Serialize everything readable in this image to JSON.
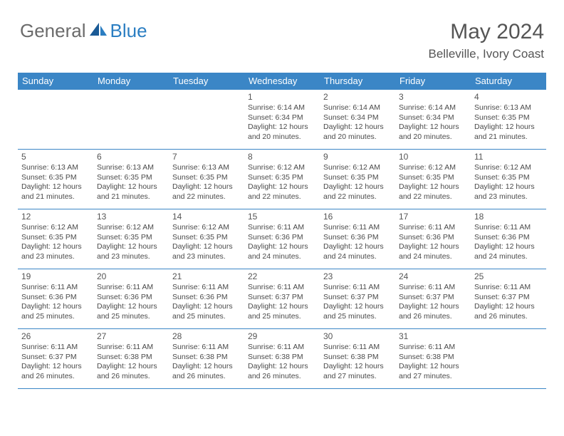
{
  "brand": {
    "word1": "General",
    "word2": "Blue"
  },
  "title": "May 2024",
  "location": "Belleville, Ivory Coast",
  "colors": {
    "header_bg": "#3b86c6",
    "header_text": "#ffffff",
    "border": "#3b86c6",
    "body_text": "#4a4a4a",
    "title_text": "#555555",
    "brand_gray": "#6b6b6b",
    "brand_blue": "#2b7ec2"
  },
  "day_headers": [
    "Sunday",
    "Monday",
    "Tuesday",
    "Wednesday",
    "Thursday",
    "Friday",
    "Saturday"
  ],
  "weeks": [
    [
      {
        "day": "",
        "sunrise": "",
        "sunset": "",
        "daylight1": "",
        "daylight2": ""
      },
      {
        "day": "",
        "sunrise": "",
        "sunset": "",
        "daylight1": "",
        "daylight2": ""
      },
      {
        "day": "",
        "sunrise": "",
        "sunset": "",
        "daylight1": "",
        "daylight2": ""
      },
      {
        "day": "1",
        "sunrise": "Sunrise: 6:14 AM",
        "sunset": "Sunset: 6:34 PM",
        "daylight1": "Daylight: 12 hours",
        "daylight2": "and 20 minutes."
      },
      {
        "day": "2",
        "sunrise": "Sunrise: 6:14 AM",
        "sunset": "Sunset: 6:34 PM",
        "daylight1": "Daylight: 12 hours",
        "daylight2": "and 20 minutes."
      },
      {
        "day": "3",
        "sunrise": "Sunrise: 6:14 AM",
        "sunset": "Sunset: 6:34 PM",
        "daylight1": "Daylight: 12 hours",
        "daylight2": "and 20 minutes."
      },
      {
        "day": "4",
        "sunrise": "Sunrise: 6:13 AM",
        "sunset": "Sunset: 6:35 PM",
        "daylight1": "Daylight: 12 hours",
        "daylight2": "and 21 minutes."
      }
    ],
    [
      {
        "day": "5",
        "sunrise": "Sunrise: 6:13 AM",
        "sunset": "Sunset: 6:35 PM",
        "daylight1": "Daylight: 12 hours",
        "daylight2": "and 21 minutes."
      },
      {
        "day": "6",
        "sunrise": "Sunrise: 6:13 AM",
        "sunset": "Sunset: 6:35 PM",
        "daylight1": "Daylight: 12 hours",
        "daylight2": "and 21 minutes."
      },
      {
        "day": "7",
        "sunrise": "Sunrise: 6:13 AM",
        "sunset": "Sunset: 6:35 PM",
        "daylight1": "Daylight: 12 hours",
        "daylight2": "and 22 minutes."
      },
      {
        "day": "8",
        "sunrise": "Sunrise: 6:12 AM",
        "sunset": "Sunset: 6:35 PM",
        "daylight1": "Daylight: 12 hours",
        "daylight2": "and 22 minutes."
      },
      {
        "day": "9",
        "sunrise": "Sunrise: 6:12 AM",
        "sunset": "Sunset: 6:35 PM",
        "daylight1": "Daylight: 12 hours",
        "daylight2": "and 22 minutes."
      },
      {
        "day": "10",
        "sunrise": "Sunrise: 6:12 AM",
        "sunset": "Sunset: 6:35 PM",
        "daylight1": "Daylight: 12 hours",
        "daylight2": "and 22 minutes."
      },
      {
        "day": "11",
        "sunrise": "Sunrise: 6:12 AM",
        "sunset": "Sunset: 6:35 PM",
        "daylight1": "Daylight: 12 hours",
        "daylight2": "and 23 minutes."
      }
    ],
    [
      {
        "day": "12",
        "sunrise": "Sunrise: 6:12 AM",
        "sunset": "Sunset: 6:35 PM",
        "daylight1": "Daylight: 12 hours",
        "daylight2": "and 23 minutes."
      },
      {
        "day": "13",
        "sunrise": "Sunrise: 6:12 AM",
        "sunset": "Sunset: 6:35 PM",
        "daylight1": "Daylight: 12 hours",
        "daylight2": "and 23 minutes."
      },
      {
        "day": "14",
        "sunrise": "Sunrise: 6:12 AM",
        "sunset": "Sunset: 6:35 PM",
        "daylight1": "Daylight: 12 hours",
        "daylight2": "and 23 minutes."
      },
      {
        "day": "15",
        "sunrise": "Sunrise: 6:11 AM",
        "sunset": "Sunset: 6:36 PM",
        "daylight1": "Daylight: 12 hours",
        "daylight2": "and 24 minutes."
      },
      {
        "day": "16",
        "sunrise": "Sunrise: 6:11 AM",
        "sunset": "Sunset: 6:36 PM",
        "daylight1": "Daylight: 12 hours",
        "daylight2": "and 24 minutes."
      },
      {
        "day": "17",
        "sunrise": "Sunrise: 6:11 AM",
        "sunset": "Sunset: 6:36 PM",
        "daylight1": "Daylight: 12 hours",
        "daylight2": "and 24 minutes."
      },
      {
        "day": "18",
        "sunrise": "Sunrise: 6:11 AM",
        "sunset": "Sunset: 6:36 PM",
        "daylight1": "Daylight: 12 hours",
        "daylight2": "and 24 minutes."
      }
    ],
    [
      {
        "day": "19",
        "sunrise": "Sunrise: 6:11 AM",
        "sunset": "Sunset: 6:36 PM",
        "daylight1": "Daylight: 12 hours",
        "daylight2": "and 25 minutes."
      },
      {
        "day": "20",
        "sunrise": "Sunrise: 6:11 AM",
        "sunset": "Sunset: 6:36 PM",
        "daylight1": "Daylight: 12 hours",
        "daylight2": "and 25 minutes."
      },
      {
        "day": "21",
        "sunrise": "Sunrise: 6:11 AM",
        "sunset": "Sunset: 6:36 PM",
        "daylight1": "Daylight: 12 hours",
        "daylight2": "and 25 minutes."
      },
      {
        "day": "22",
        "sunrise": "Sunrise: 6:11 AM",
        "sunset": "Sunset: 6:37 PM",
        "daylight1": "Daylight: 12 hours",
        "daylight2": "and 25 minutes."
      },
      {
        "day": "23",
        "sunrise": "Sunrise: 6:11 AM",
        "sunset": "Sunset: 6:37 PM",
        "daylight1": "Daylight: 12 hours",
        "daylight2": "and 25 minutes."
      },
      {
        "day": "24",
        "sunrise": "Sunrise: 6:11 AM",
        "sunset": "Sunset: 6:37 PM",
        "daylight1": "Daylight: 12 hours",
        "daylight2": "and 26 minutes."
      },
      {
        "day": "25",
        "sunrise": "Sunrise: 6:11 AM",
        "sunset": "Sunset: 6:37 PM",
        "daylight1": "Daylight: 12 hours",
        "daylight2": "and 26 minutes."
      }
    ],
    [
      {
        "day": "26",
        "sunrise": "Sunrise: 6:11 AM",
        "sunset": "Sunset: 6:37 PM",
        "daylight1": "Daylight: 12 hours",
        "daylight2": "and 26 minutes."
      },
      {
        "day": "27",
        "sunrise": "Sunrise: 6:11 AM",
        "sunset": "Sunset: 6:38 PM",
        "daylight1": "Daylight: 12 hours",
        "daylight2": "and 26 minutes."
      },
      {
        "day": "28",
        "sunrise": "Sunrise: 6:11 AM",
        "sunset": "Sunset: 6:38 PM",
        "daylight1": "Daylight: 12 hours",
        "daylight2": "and 26 minutes."
      },
      {
        "day": "29",
        "sunrise": "Sunrise: 6:11 AM",
        "sunset": "Sunset: 6:38 PM",
        "daylight1": "Daylight: 12 hours",
        "daylight2": "and 26 minutes."
      },
      {
        "day": "30",
        "sunrise": "Sunrise: 6:11 AM",
        "sunset": "Sunset: 6:38 PM",
        "daylight1": "Daylight: 12 hours",
        "daylight2": "and 27 minutes."
      },
      {
        "day": "31",
        "sunrise": "Sunrise: 6:11 AM",
        "sunset": "Sunset: 6:38 PM",
        "daylight1": "Daylight: 12 hours",
        "daylight2": "and 27 minutes."
      },
      {
        "day": "",
        "sunrise": "",
        "sunset": "",
        "daylight1": "",
        "daylight2": ""
      }
    ]
  ]
}
